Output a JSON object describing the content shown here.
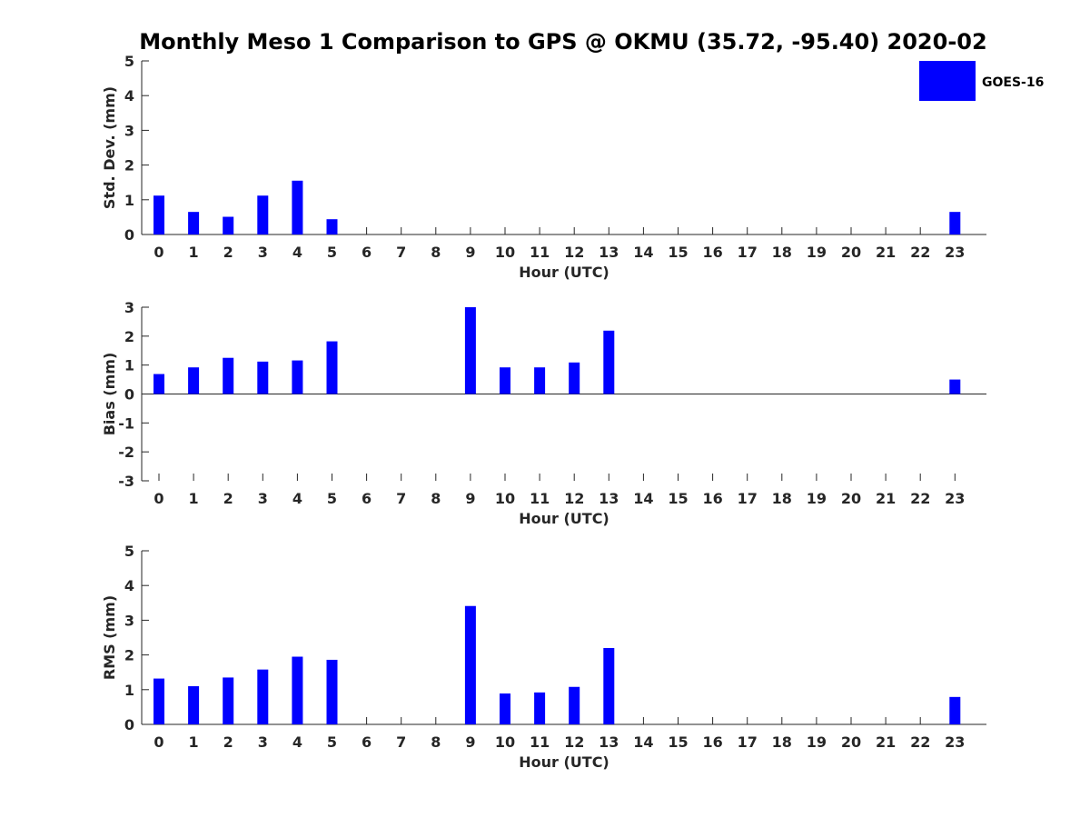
{
  "figure": {
    "title": "Monthly Meso 1 Comparison to GPS @ OKMU (35.72, -95.40) 2020-02"
  },
  "legend": {
    "label": "GOES-16",
    "color": "#0000ff",
    "placement": "top-right"
  },
  "chart_data": [
    {
      "type": "bar",
      "xlabel": "Hour (UTC)",
      "ylabel": "Std. Dev. (mm)",
      "ylim": [
        0,
        5
      ],
      "yticks": [
        "0",
        "1",
        "2",
        "3",
        "4",
        "5"
      ],
      "x": [
        "0",
        "1",
        "2",
        "3",
        "4",
        "5",
        "6",
        "7",
        "8",
        "9",
        "10",
        "11",
        "12",
        "13",
        "14",
        "15",
        "16",
        "17",
        "18",
        "19",
        "20",
        "21",
        "22",
        "23"
      ],
      "series": [
        {
          "name": "GOES-16",
          "color": "#0000ff",
          "values": [
            1.12,
            0.65,
            0.51,
            1.12,
            1.55,
            0.44,
            null,
            null,
            null,
            null,
            null,
            null,
            null,
            null,
            null,
            null,
            null,
            null,
            null,
            null,
            null,
            null,
            null,
            0.65
          ]
        }
      ]
    },
    {
      "type": "bar",
      "xlabel": "Hour (UTC)",
      "ylabel": "Bias (mm)",
      "ylim": [
        -3,
        3
      ],
      "yticks": [
        "-3",
        "-2",
        "-1",
        "0",
        "1",
        "2",
        "3"
      ],
      "x": [
        "0",
        "1",
        "2",
        "3",
        "4",
        "5",
        "6",
        "7",
        "8",
        "9",
        "10",
        "11",
        "12",
        "13",
        "14",
        "15",
        "16",
        "17",
        "18",
        "19",
        "20",
        "21",
        "22",
        "23"
      ],
      "series": [
        {
          "name": "GOES-16",
          "color": "#0000ff",
          "values": [
            0.69,
            0.92,
            1.25,
            1.12,
            1.16,
            1.82,
            null,
            null,
            null,
            3.0,
            0.92,
            0.92,
            1.09,
            2.19,
            null,
            null,
            null,
            null,
            null,
            null,
            null,
            null,
            null,
            0.5
          ]
        }
      ]
    },
    {
      "type": "bar",
      "xlabel": "Hour (UTC)",
      "ylabel": "RMS (mm)",
      "ylim": [
        0,
        5
      ],
      "yticks": [
        "0",
        "1",
        "2",
        "3",
        "4",
        "5"
      ],
      "x": [
        "0",
        "1",
        "2",
        "3",
        "4",
        "5",
        "6",
        "7",
        "8",
        "9",
        "10",
        "11",
        "12",
        "13",
        "14",
        "15",
        "16",
        "17",
        "18",
        "19",
        "20",
        "21",
        "22",
        "23"
      ],
      "series": [
        {
          "name": "GOES-16",
          "color": "#0000ff",
          "values": [
            1.32,
            1.1,
            1.35,
            1.58,
            1.95,
            1.86,
            null,
            null,
            null,
            3.41,
            0.89,
            0.92,
            1.08,
            2.2,
            null,
            null,
            null,
            null,
            null,
            null,
            null,
            null,
            null,
            0.79
          ]
        }
      ]
    }
  ]
}
